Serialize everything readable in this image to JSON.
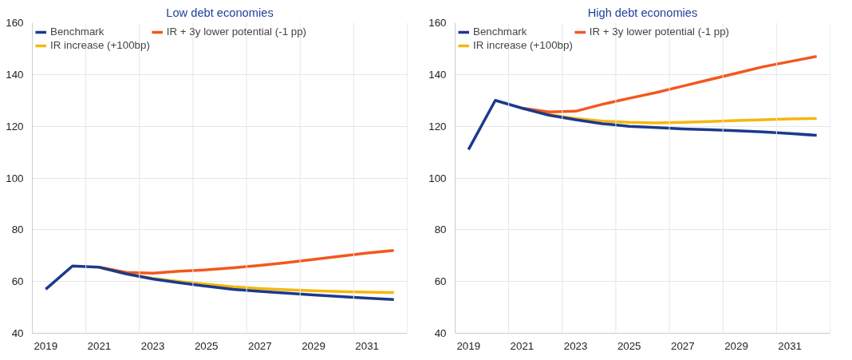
{
  "chart_data": [
    {
      "type": "line",
      "title": "Low debt economies",
      "categories": [
        "2019",
        null,
        "2021",
        null,
        "2023",
        null,
        "2025",
        null,
        "2027",
        null,
        "2029",
        null,
        "2031",
        null
      ],
      "series": [
        {
          "name": "Benchmark",
          "color": "#1b3a8c",
          "values": [
            57,
            66,
            65.5,
            63,
            61,
            59.5,
            58.2,
            57,
            56.2,
            55.5,
            54.8,
            54.2,
            53.6,
            53
          ]
        },
        {
          "name": "IR + 3y lower potential (-1 pp)",
          "color": "#f2581e",
          "values": [
            null,
            null,
            65.5,
            63.5,
            63.2,
            64,
            64.5,
            65.3,
            66.2,
            67.3,
            68.5,
            69.8,
            71,
            72
          ]
        },
        {
          "name": "IR increase (+100bp)",
          "color": "#f5b70f",
          "values": [
            null,
            null,
            65.5,
            63,
            61.2,
            60,
            59,
            58,
            57.3,
            56.8,
            56.4,
            56.1,
            55.9,
            55.7
          ]
        }
      ],
      "ylim": [
        40,
        160
      ],
      "yticks": [
        40,
        60,
        80,
        100,
        120,
        140,
        160
      ],
      "grid": true,
      "legend": "top",
      "marker": "none",
      "line_style": "solid"
    },
    {
      "type": "line",
      "title": "High debt economies",
      "categories": [
        "2019",
        null,
        "2021",
        null,
        "2023",
        null,
        "2025",
        null,
        "2027",
        null,
        "2029",
        null,
        "2031",
        null
      ],
      "series": [
        {
          "name": "Benchmark",
          "color": "#1b3a8c",
          "values": [
            111,
            130,
            127,
            124.3,
            122.5,
            121,
            120,
            119.5,
            119,
            118.7,
            118.3,
            117.8,
            117.2,
            116.5
          ]
        },
        {
          "name": "IR + 3y lower potential (-1 pp)",
          "color": "#f2581e",
          "values": [
            null,
            null,
            127,
            125.5,
            125.8,
            128.5,
            130.8,
            133,
            135.5,
            138,
            140.5,
            143,
            145,
            147
          ]
        },
        {
          "name": "IR increase (+100bp)",
          "color": "#f5b70f",
          "values": [
            null,
            null,
            127,
            124.5,
            123,
            122,
            121.5,
            121.3,
            121.5,
            121.8,
            122.2,
            122.5,
            122.8,
            123
          ]
        }
      ],
      "ylim": [
        40,
        160
      ],
      "yticks": [
        40,
        60,
        80,
        100,
        120,
        140,
        160
      ],
      "grid": true,
      "legend": "top",
      "marker": "none",
      "line_style": "solid"
    }
  ]
}
